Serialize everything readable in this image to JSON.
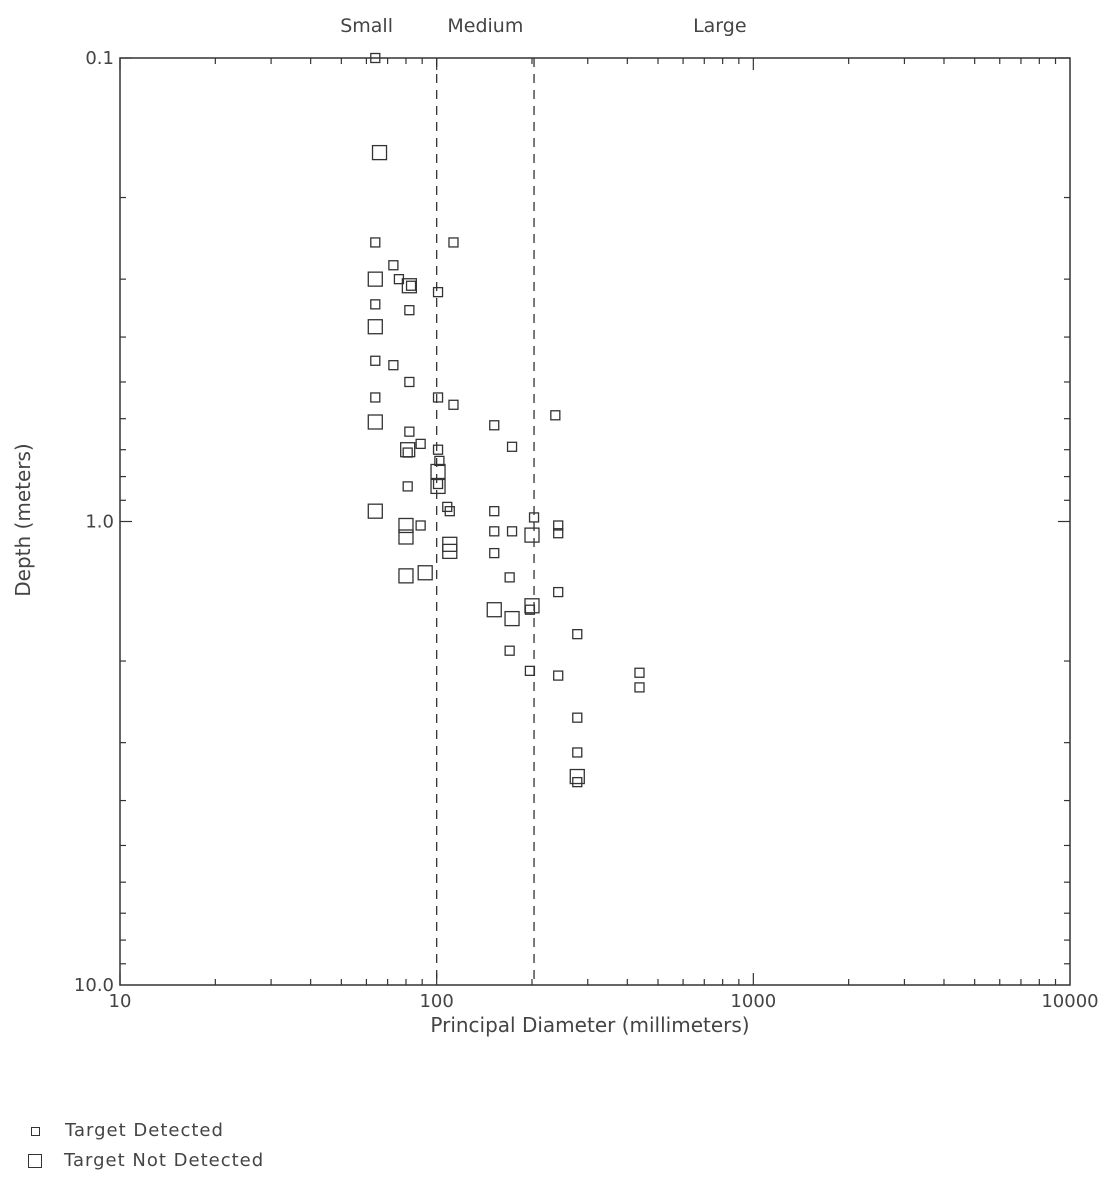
{
  "chart_data": {
    "type": "scatter",
    "xlabel": "Principal Diameter (millimeters)",
    "ylabel": "Depth (meters)",
    "x_scale": "log",
    "y_scale": "log",
    "y_inverted": true,
    "xlim": [
      10,
      10000
    ],
    "ylim": [
      0.1,
      10.0
    ],
    "x_tick_labels": [
      "10",
      "100",
      "1000",
      "10000"
    ],
    "y_tick_labels": [
      "0.1",
      "1.0",
      "10.0"
    ],
    "grid": false,
    "legend_position": "bottom-left",
    "size_classes": [
      {
        "label": "Small"
      },
      {
        "label": "Medium"
      },
      {
        "label": "Large"
      }
    ],
    "class_boundaries_mm": [
      100,
      203
    ],
    "series": [
      {
        "name": "Target Detected",
        "marker": "small-square",
        "points": [
          [
            64,
            0.1
          ],
          [
            64,
            0.25
          ],
          [
            64,
            0.34
          ],
          [
            64,
            0.45
          ],
          [
            64,
            0.54
          ],
          [
            73,
            0.28
          ],
          [
            73,
            0.46
          ],
          [
            76,
            0.3
          ],
          [
            81,
            0.71
          ],
          [
            81,
            0.84
          ],
          [
            82,
            0.35
          ],
          [
            82,
            0.5
          ],
          [
            82,
            0.64
          ],
          [
            83,
            0.31
          ],
          [
            89,
            0.68
          ],
          [
            89,
            1.02
          ],
          [
            101,
            0.32
          ],
          [
            101,
            0.54
          ],
          [
            101,
            0.83
          ],
          [
            101,
            0.7
          ],
          [
            102,
            0.74
          ],
          [
            113,
            0.25
          ],
          [
            113,
            0.56
          ],
          [
            108,
            0.93
          ],
          [
            110,
            0.95
          ],
          [
            152,
            0.62
          ],
          [
            152,
            0.95
          ],
          [
            152,
            1.05
          ],
          [
            152,
            1.17
          ],
          [
            173,
            0.69
          ],
          [
            173,
            1.05
          ],
          [
            170,
            1.32
          ],
          [
            170,
            1.9
          ],
          [
            197,
            1.55
          ],
          [
            197,
            2.1
          ],
          [
            203,
            0.98
          ],
          [
            237,
            0.59
          ],
          [
            242,
            1.02
          ],
          [
            242,
            1.06
          ],
          [
            242,
            1.42
          ],
          [
            242,
            2.15
          ],
          [
            278,
            1.75
          ],
          [
            278,
            2.65
          ],
          [
            278,
            3.15
          ],
          [
            278,
            3.65
          ],
          [
            437,
            2.12
          ],
          [
            437,
            2.28
          ]
        ]
      },
      {
        "name": "Target Not Detected",
        "marker": "large-square",
        "points": [
          [
            66,
            0.16
          ],
          [
            64,
            0.3
          ],
          [
            64,
            0.38
          ],
          [
            64,
            0.61
          ],
          [
            64,
            0.95
          ],
          [
            80,
            1.02
          ],
          [
            80,
            1.08
          ],
          [
            80,
            1.31
          ],
          [
            81,
            0.7
          ],
          [
            82,
            0.31
          ],
          [
            92,
            1.29
          ],
          [
            101,
            0.78
          ],
          [
            101,
            0.84
          ],
          [
            110,
            1.12
          ],
          [
            110,
            1.16
          ],
          [
            152,
            1.55
          ],
          [
            173,
            1.62
          ],
          [
            200,
            1.07
          ],
          [
            200,
            1.52
          ],
          [
            278,
            3.55
          ]
        ]
      }
    ]
  }
}
